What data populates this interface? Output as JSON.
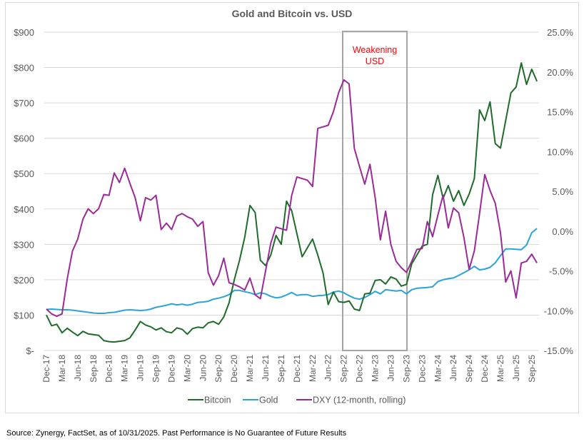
{
  "chart_data": {
    "type": "line",
    "title": "Gold and Bitcoin vs. USD",
    "x_range": [
      "Dec-17",
      "Oct-25"
    ],
    "x_ticks": [
      "Dec-17",
      "Mar-18",
      "Jun-18",
      "Sep-18",
      "Dec-18",
      "Mar-19",
      "Jun-19",
      "Sep-19",
      "Dec-19",
      "Mar-20",
      "Jun-20",
      "Sep-20",
      "Dec-20",
      "Mar-21",
      "Jun-21",
      "Sep-21",
      "Dec-21",
      "Mar-22",
      "Jun-22",
      "Sep-22",
      "Dec-22",
      "Mar-23",
      "Jun-23",
      "Sep-23",
      "Dec-23",
      "Mar-24",
      "Jun-24",
      "Sep-24",
      "Dec-24",
      "Mar-25",
      "Jun-25",
      "Sep-25"
    ],
    "y_left": {
      "ticks": [
        "$-",
        "$100",
        "$200",
        "$300",
        "$400",
        "$500",
        "$600",
        "$700",
        "$800",
        "$900"
      ],
      "range": [
        0,
        900
      ]
    },
    "y_right": {
      "ticks": [
        "-15.0%",
        "-10.0%",
        "-5.0%",
        "0.0%",
        "5.0%",
        "10.0%",
        "15.0%",
        "20.0%",
        "25.0%"
      ],
      "range": [
        -15,
        25
      ]
    },
    "grid": true,
    "legend_position": "bottom",
    "series": [
      {
        "name": "Bitcoin",
        "axis": "left",
        "color": "#1E6B2A",
        "values": [
          100,
          70,
          74,
          50,
          63,
          52,
          42,
          54,
          47,
          45,
          43,
          28,
          25,
          24,
          26,
          28,
          36,
          58,
          82,
          72,
          67,
          58,
          64,
          53,
          50,
          64,
          60,
          46,
          62,
          66,
          64,
          78,
          82,
          74,
          95,
          135,
          200,
          255,
          320,
          410,
          390,
          255,
          240,
          270,
          325,
          300,
          422,
          395,
          330,
          265,
          290,
          315,
          270,
          220,
          130,
          165,
          138,
          136,
          140,
          117,
          113,
          160,
          162,
          198,
          200,
          188,
          208,
          202,
          182,
          187,
          245,
          270,
          295,
          300,
          440,
          495,
          430,
          466,
          422,
          452,
          410,
          442,
          486,
          680,
          650,
          703,
          585,
          572,
          650,
          728,
          745,
          813,
          752,
          795,
          761
        ]
      },
      {
        "name": "Gold",
        "axis": "left",
        "color": "#29A3DA",
        "values": [
          116,
          117,
          116,
          115,
          115,
          114,
          112,
          110,
          108,
          106,
          105,
          105,
          107,
          108,
          111,
          114,
          115,
          114,
          113,
          114,
          117,
          122,
          125,
          128,
          132,
          129,
          131,
          128,
          131,
          136,
          137,
          139,
          145,
          148,
          152,
          158,
          170,
          170,
          166,
          163,
          158,
          163,
          160,
          153,
          149,
          151,
          157,
          164,
          156,
          158,
          158,
          153,
          155,
          156,
          158,
          165,
          168,
          163,
          155,
          148,
          145,
          150,
          158,
          167,
          160,
          172,
          170,
          168,
          170,
          160,
          172,
          176,
          177,
          178,
          180,
          195,
          200,
          203,
          205,
          212,
          220,
          228,
          238,
          228,
          230,
          235,
          248,
          268,
          287,
          287,
          286,
          285,
          298,
          333,
          345
        ]
      },
      {
        "name": "DXY (12-month, rolling)",
        "axis": "right",
        "color": "#9B2A99",
        "values": [
          -9.8,
          -10.4,
          -10.7,
          -10.4,
          -6.0,
          -2.5,
          -1.0,
          1.5,
          2.8,
          2.2,
          2.8,
          4.6,
          4.5,
          7.3,
          6.1,
          7.9,
          6.0,
          4.2,
          1.3,
          4.2,
          3.9,
          4.5,
          0.2,
          1.0,
          0.2,
          1.9,
          2.2,
          1.8,
          1.5,
          0.6,
          1.2,
          -5.2,
          -6.8,
          -5.6,
          -3.4,
          -6.5,
          -6.7,
          -7.0,
          -7.4,
          -5.9,
          -8.0,
          -8.5,
          -5.0,
          -1.5,
          0.5,
          0.3,
          0.1,
          4.5,
          6.8,
          6.6,
          6.4,
          5.6,
          12.9,
          13.1,
          13.3,
          15.0,
          17.4,
          19.0,
          18.5,
          10.4,
          8.1,
          5.9,
          8.4,
          4.2,
          -1.1,
          2.5,
          -1.7,
          -3.8,
          -4.6,
          -5.2,
          -3.8,
          -2.3,
          -2.2,
          1.2,
          -0.7,
          2.0,
          4.5,
          0.4,
          2.9,
          2.3,
          -0.8,
          -4.8,
          -2.5,
          2.2,
          7.1,
          5.1,
          3.5,
          -0.2,
          -6.4,
          -5.0,
          -8.4,
          -4.0,
          -3.8,
          -2.9,
          -4.0
        ]
      }
    ],
    "annotation": {
      "text_line1": "Weakening",
      "text_line2": "USD",
      "color": "#FF0000",
      "range": [
        "Sep-22",
        "Sep-23"
      ]
    }
  },
  "source": "Source: Zynergy, FactSet, as of 10/31/2025.  Past Performance is No Guarantee of Future Results"
}
